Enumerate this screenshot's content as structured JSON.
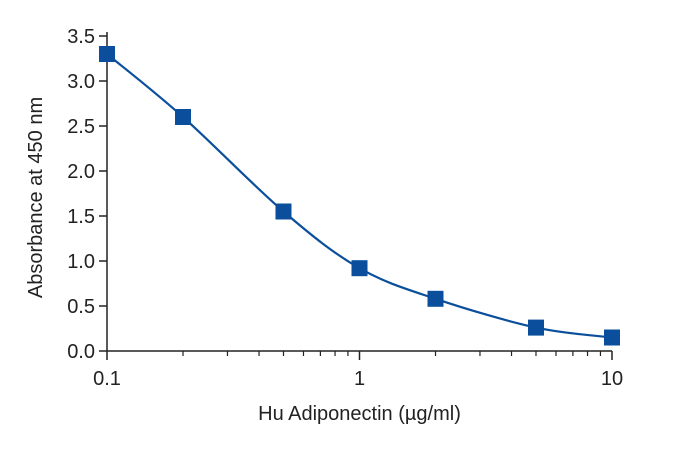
{
  "chart_data": {
    "type": "scatter",
    "title": "",
    "xlabel": "Hu Adiponectin (µg/ml)",
    "ylabel": "Absorbance at 450 nm",
    "x_scale": "log",
    "xlim": [
      0.1,
      10
    ],
    "ylim": [
      0,
      3.5
    ],
    "x_ticks": [
      0.1,
      1,
      10
    ],
    "x_tick_labels": [
      "0.1",
      "1",
      "10"
    ],
    "y_ticks": [
      0,
      0.5,
      1,
      1.5,
      2,
      2.5,
      3,
      3.5
    ],
    "y_tick_labels": [
      "0.0",
      "0.5",
      "1.0",
      "1.5",
      "2.0",
      "2.5",
      "3.0",
      "3.5"
    ],
    "grid": false,
    "legend": "none",
    "series": [
      {
        "x": [
          0.1,
          0.2,
          0.5,
          1,
          2,
          5,
          10
        ],
        "y": [
          3.3,
          2.6,
          1.55,
          0.92,
          0.58,
          0.26,
          0.15
        ],
        "marker": "square",
        "connected": "smooth",
        "color": "#0b4f9c"
      }
    ],
    "colors": {
      "series": "#0b4f9c",
      "axis": "#222222"
    }
  }
}
